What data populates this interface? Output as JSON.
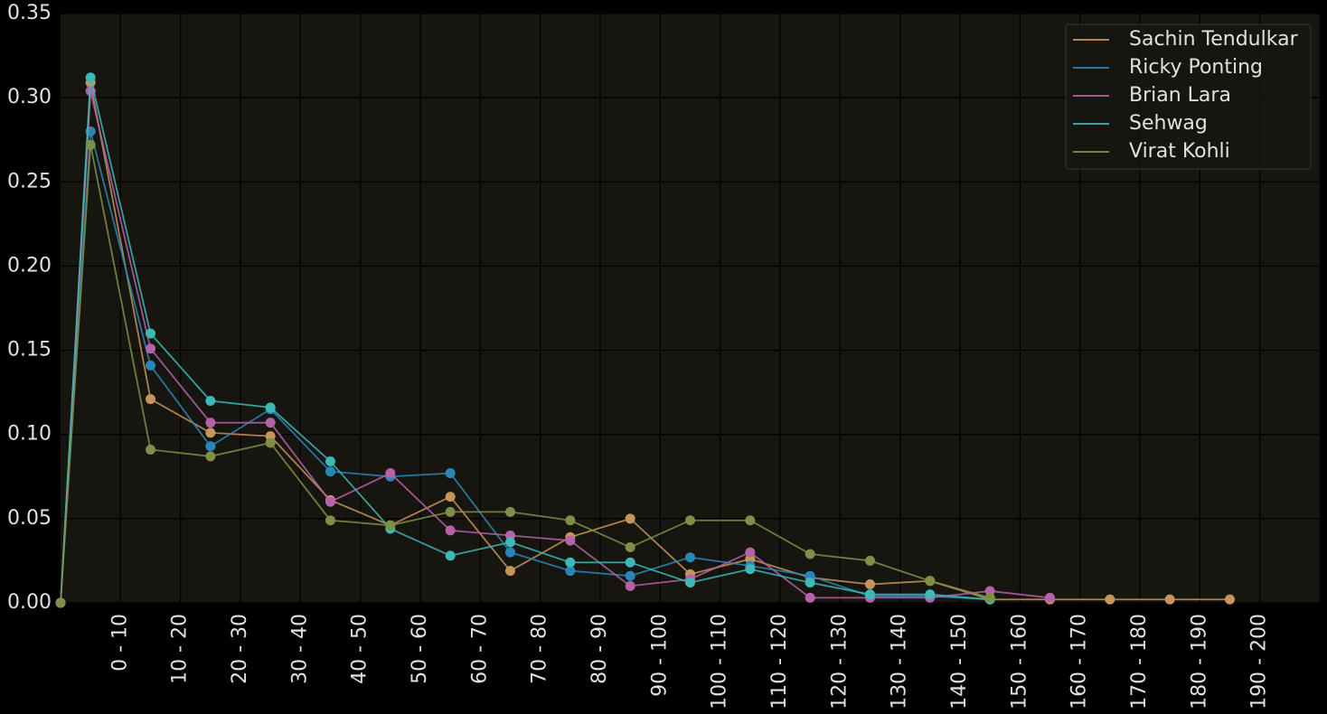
{
  "chart_data": {
    "type": "line",
    "x": [
      0,
      0.5,
      1.5,
      2.5,
      3.5,
      4.5,
      5.5,
      6.5,
      7.5,
      8.5,
      9.5,
      10.5,
      11.5,
      12.5,
      13.5,
      14.5,
      15.5,
      16.5,
      17.5,
      18.5,
      19.5
    ],
    "series": [
      {
        "name": "Sachin Tendulkar",
        "color": "#c8945a",
        "values": [
          0,
          0.309,
          0.121,
          0.101,
          0.099,
          0.061,
          0.046,
          0.063,
          0.019,
          0.039,
          0.05,
          0.017,
          0.026,
          0.015,
          0.011,
          0.013,
          0.002,
          0.002,
          0.002,
          0.002,
          0.002
        ]
      },
      {
        "name": "Ricky Ponting",
        "color": "#2b86b8",
        "values": [
          0,
          0.28,
          0.141,
          0.093,
          0.115,
          0.078,
          0.075,
          0.077,
          0.03,
          0.019,
          0.016,
          0.027,
          0.022,
          0.016,
          0.004,
          0.004,
          0.002,
          null,
          null,
          null,
          null
        ]
      },
      {
        "name": "Brian Lara",
        "color": "#b562a8",
        "values": [
          0,
          0.304,
          0.151,
          0.107,
          0.107,
          0.06,
          0.077,
          0.043,
          0.04,
          0.037,
          0.01,
          0.014,
          0.03,
          0.003,
          0.003,
          0.003,
          0.007,
          0.003,
          null,
          null,
          null
        ]
      },
      {
        "name": "Sehwag",
        "color": "#3cb8b6",
        "values": [
          0,
          0.312,
          0.16,
          0.12,
          0.116,
          0.084,
          0.044,
          0.028,
          0.036,
          0.024,
          0.024,
          0.012,
          0.02,
          0.012,
          0.005,
          0.005,
          0.002,
          null,
          null,
          null,
          null
        ]
      },
      {
        "name": "Virat Kohli",
        "color": "#7f8f48",
        "values": [
          0,
          0.272,
          0.091,
          0.087,
          0.095,
          0.049,
          0.046,
          0.054,
          0.054,
          0.049,
          0.033,
          0.049,
          0.049,
          0.029,
          0.025,
          0.013,
          0.003,
          null,
          null,
          null,
          null
        ]
      }
    ],
    "xlim": [
      0,
      21
    ],
    "xticks": [
      {
        "value": 1,
        "label": "0 - 10"
      },
      {
        "value": 2,
        "label": "10 - 20"
      },
      {
        "value": 3,
        "label": "20 - 30"
      },
      {
        "value": 4,
        "label": "30 - 40"
      },
      {
        "value": 5,
        "label": "40 - 50"
      },
      {
        "value": 6,
        "label": "50 - 60"
      },
      {
        "value": 7,
        "label": "60 - 70"
      },
      {
        "value": 8,
        "label": "70 - 80"
      },
      {
        "value": 9,
        "label": "80 - 90"
      },
      {
        "value": 10,
        "label": "90 - 100"
      },
      {
        "value": 11,
        "label": "100 - 110"
      },
      {
        "value": 12,
        "label": "110 - 120"
      },
      {
        "value": 13,
        "label": "120 - 130"
      },
      {
        "value": 14,
        "label": "130 - 140"
      },
      {
        "value": 15,
        "label": "140 - 150"
      },
      {
        "value": 16,
        "label": "150 - 160"
      },
      {
        "value": 17,
        "label": "160 - 170"
      },
      {
        "value": 18,
        "label": "170 - 180"
      },
      {
        "value": 19,
        "label": "180 - 190"
      },
      {
        "value": 20,
        "label": "190 - 200"
      }
    ],
    "ylim": [
      0,
      0.35
    ],
    "yticks": [
      {
        "value": 0,
        "label": "0.00"
      },
      0.05,
      {
        "value": 0.1,
        "label": "0.10"
      },
      0.15,
      {
        "value": 0.2,
        "label": "0.20"
      },
      0.25,
      {
        "value": 0.3,
        "label": "0.30"
      },
      0.35
    ],
    "grid": true,
    "legend": "upper right"
  }
}
